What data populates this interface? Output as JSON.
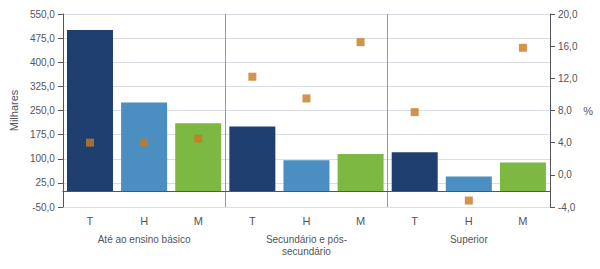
{
  "chart_data": {
    "type": "bar",
    "categories": [
      "T",
      "H",
      "M",
      "T",
      "H",
      "M",
      "T",
      "H",
      "M"
    ],
    "annotations": [
      "Até ao ensino básico",
      "Secundário e pós-\nsecundário",
      "Superior"
    ],
    "ylabel": "Milhares",
    "y2label": "%",
    "series": [
      {
        "type": "bar",
        "colors": [
          "#1e3f6f",
          "#4a8ec2",
          "#7cb842",
          "#1e3f6f",
          "#4a8ec2",
          "#7cb842",
          "#1e3f6f",
          "#4a8ec2",
          "#7cb842"
        ],
        "values": [
          500,
          275,
          210,
          200,
          95,
          115,
          120,
          45,
          88
        ]
      },
      {
        "type": "scatter",
        "axis": "y2",
        "color": "#c87820",
        "marker": "square",
        "values": [
          4.0,
          4.0,
          4.5,
          12.2,
          9.5,
          16.5,
          7.8,
          -3.2,
          15.8
        ]
      }
    ],
    "ylim": [
      -50,
      550
    ],
    "yticks": [
      {
        "value": -50,
        "label": "-50,0"
      },
      {
        "value": 25,
        "label": "25,0"
      },
      {
        "value": 100,
        "label": "100,0"
      },
      {
        "value": 175,
        "label": "175,0"
      },
      {
        "value": 250,
        "label": "250,0"
      },
      {
        "value": 325,
        "label": "325,0"
      },
      {
        "value": 400,
        "label": "400,0"
      },
      {
        "value": 475,
        "label": "475,0"
      },
      {
        "value": 550,
        "label": "550,0"
      }
    ],
    "y2lim": [
      -4,
      20
    ],
    "y2ticks": [
      {
        "value": -4,
        "label": "-4,0"
      },
      {
        "value": 0,
        "label": "0,0"
      },
      {
        "value": 4,
        "label": "4,0"
      },
      {
        "value": 8,
        "label": "8,0"
      },
      {
        "value": 12,
        "label": "12,0"
      },
      {
        "value": 16,
        "label": "16,0"
      },
      {
        "value": 20,
        "label": "20,0"
      }
    ],
    "grid": true
  }
}
